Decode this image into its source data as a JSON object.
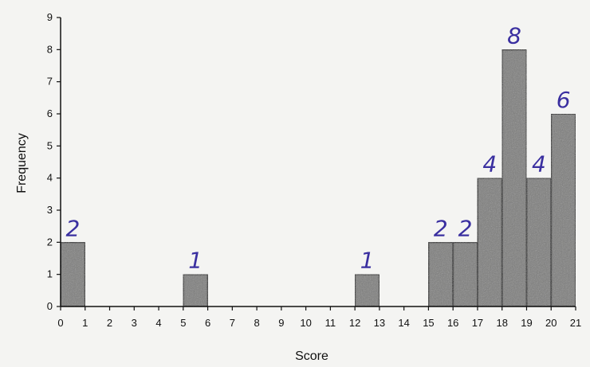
{
  "chart_data": {
    "type": "bar",
    "xlabel": "Score",
    "ylabel": "Frequency",
    "xlim": [
      0,
      21
    ],
    "ylim": [
      0,
      9
    ],
    "x_ticks": [
      "0",
      "1",
      "2",
      "3",
      "4",
      "5",
      "6",
      "7",
      "8",
      "9",
      "10",
      "11",
      "12",
      "13",
      "14",
      "15",
      "16",
      "17",
      "18",
      "19",
      "20",
      "21"
    ],
    "y_ticks": [
      "0",
      "1",
      "2",
      "3",
      "4",
      "5",
      "6",
      "7",
      "8",
      "9"
    ],
    "bins": [
      {
        "start": 0,
        "end": 1,
        "value": 2,
        "label": "2"
      },
      {
        "start": 5,
        "end": 6,
        "value": 1,
        "label": "1"
      },
      {
        "start": 12,
        "end": 13,
        "value": 1,
        "label": "1"
      },
      {
        "start": 15,
        "end": 16,
        "value": 2,
        "label": "2"
      },
      {
        "start": 16,
        "end": 17,
        "value": 2,
        "label": "2"
      },
      {
        "start": 17,
        "end": 18,
        "value": 4,
        "label": "4"
      },
      {
        "start": 18,
        "end": 19,
        "value": 8,
        "label": "8"
      },
      {
        "start": 19,
        "end": 20,
        "value": 4,
        "label": "4"
      },
      {
        "start": 20,
        "end": 21,
        "value": 6,
        "label": "6"
      }
    ],
    "colors": {
      "bar_fill": "#7d7d7b",
      "bar_stroke": "#222222",
      "axis": "#111111",
      "annotation": "#3a2fa0"
    }
  }
}
